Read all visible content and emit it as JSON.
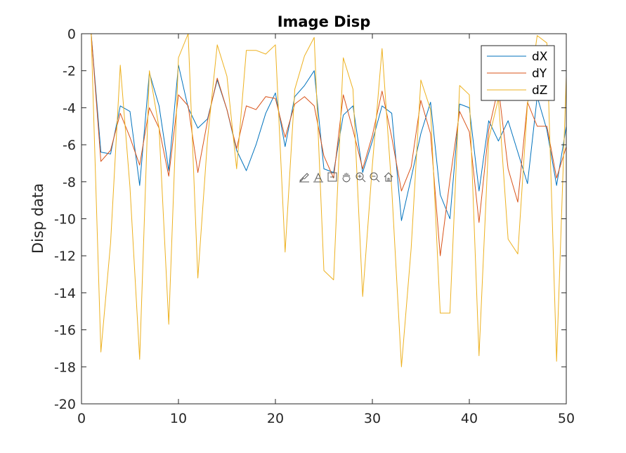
{
  "chart_data": {
    "type": "line",
    "title": "Image Disp",
    "xlabel": "",
    "ylabel": "Disp data",
    "xlim": [
      0,
      50
    ],
    "ylim": [
      -20,
      0
    ],
    "xticks": [
      0,
      10,
      20,
      30,
      40,
      50
    ],
    "yticks": [
      0,
      -2,
      -4,
      -6,
      -8,
      -10,
      -12,
      -14,
      -16,
      -18,
      -20
    ],
    "grid": false,
    "legend_position": "top-right",
    "x": [
      1,
      2,
      3,
      4,
      5,
      6,
      7,
      8,
      9,
      10,
      11,
      12,
      13,
      14,
      15,
      16,
      17,
      18,
      19,
      20,
      21,
      22,
      23,
      24,
      25,
      26,
      27,
      28,
      29,
      30,
      31,
      32,
      33,
      34,
      35,
      36,
      37,
      38,
      39,
      40,
      41,
      42,
      43,
      44,
      45,
      46,
      47,
      48,
      49,
      50
    ],
    "series": [
      {
        "name": "dX",
        "color": "#0072BD",
        "values": [
          0,
          -6.4,
          -6.5,
          -3.9,
          -4.2,
          -8.2,
          -2.1,
          -3.9,
          -7.4,
          -1.7,
          -4.0,
          -5.1,
          -4.6,
          -2.5,
          -4.1,
          -6.3,
          -7.4,
          -6.0,
          -4.3,
          -3.2,
          -6.1,
          -3.4,
          -2.8,
          -2.0,
          -7.3,
          -7.5,
          -4.4,
          -3.9,
          -7.5,
          -5.8,
          -3.9,
          -4.3,
          -10.1,
          -7.8,
          -5.4,
          -3.7,
          -8.7,
          -10.0,
          -3.8,
          -4.0,
          -8.5,
          -4.7,
          -5.8,
          -4.7,
          -6.4,
          -8.1,
          -3.4,
          -5.2,
          -8.2,
          -5.0
        ]
      },
      {
        "name": "dY",
        "color": "#D95319",
        "values": [
          0,
          -6.9,
          -6.3,
          -4.3,
          -5.6,
          -7.1,
          -4.0,
          -5.1,
          -7.7,
          -3.3,
          -3.9,
          -7.5,
          -4.7,
          -2.4,
          -4.1,
          -6.2,
          -3.9,
          -4.1,
          -3.4,
          -3.5,
          -5.6,
          -3.8,
          -3.4,
          -3.9,
          -6.6,
          -7.8,
          -3.3,
          -5.2,
          -7.3,
          -5.5,
          -3.1,
          -5.6,
          -8.5,
          -7.2,
          -3.6,
          -5.4,
          -12.0,
          -7.9,
          -4.2,
          -5.3,
          -10.2,
          -5.2,
          -2.9,
          -7.3,
          -9.1,
          -3.7,
          -5.0,
          -5.0,
          -7.8,
          -6.1
        ]
      },
      {
        "name": "dZ",
        "color": "#EDB120",
        "values": [
          0,
          -17.2,
          -11.3,
          -1.7,
          -8.3,
          -17.6,
          -2.0,
          -5.1,
          -15.7,
          -1.3,
          0,
          -13.2,
          -5.7,
          -0.6,
          -2.3,
          -7.3,
          -0.9,
          -0.9,
          -1.1,
          -0.6,
          -11.8,
          -3.0,
          -1.2,
          -0.2,
          -12.8,
          -13.3,
          -1.3,
          -3.0,
          -14.2,
          -7.1,
          -0.8,
          -8.4,
          -18.0,
          -11.6,
          -2.5,
          -4.1,
          -15.1,
          -15.1,
          -2.8,
          -3.3,
          -17.4,
          -5.7,
          -3.5,
          -11.1,
          -11.9,
          -3.8,
          -0.1,
          -0.5,
          -17.7,
          -2.3
        ]
      }
    ]
  },
  "toolbar": {
    "icons": [
      "brush-icon",
      "data-tips-icon",
      "zoom-in-icon",
      "pan-icon",
      "zoom-plus-icon",
      "zoom-minus-icon",
      "home-icon"
    ]
  }
}
